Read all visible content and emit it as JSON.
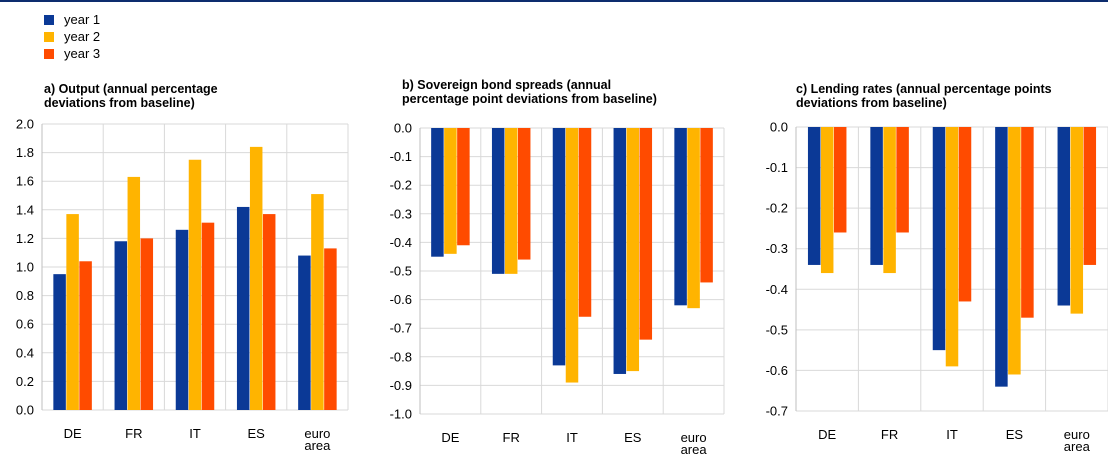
{
  "legend": [
    {
      "label": "year 1",
      "color": "#0b3996"
    },
    {
      "label": "year 2",
      "color": "#ffb400"
    },
    {
      "label": "year 3",
      "color": "#ff4b00"
    }
  ],
  "chart_data": [
    {
      "type": "bar",
      "title_lines": [
        "a) Output (annual percentage",
        "deviations from baseline)"
      ],
      "categories": [
        "DE",
        "FR",
        "IT",
        "ES",
        "euro area"
      ],
      "series": [
        {
          "name": "year 1",
          "values": [
            0.95,
            1.18,
            1.26,
            1.42,
            1.08
          ]
        },
        {
          "name": "year 2",
          "values": [
            1.37,
            1.63,
            1.75,
            1.84,
            1.51
          ]
        },
        {
          "name": "year 3",
          "values": [
            1.04,
            1.2,
            1.31,
            1.37,
            1.13
          ]
        }
      ],
      "ylim": [
        0,
        2.0
      ],
      "yticks": [
        "2.0",
        "1.8",
        "1.6",
        "1.4",
        "1.2",
        "1.0",
        "0.8",
        "0.6",
        "0.4",
        "0.2",
        "0.0"
      ],
      "legend_position": "top-left"
    },
    {
      "type": "bar",
      "title_lines": [
        "b) Sovereign bond spreads (annual",
        "percentage point deviations from baseline)"
      ],
      "categories": [
        "DE",
        "FR",
        "IT",
        "ES",
        "euro area"
      ],
      "series": [
        {
          "name": "year 1",
          "values": [
            -0.45,
            -0.51,
            -0.83,
            -0.86,
            -0.62
          ]
        },
        {
          "name": "year 2",
          "values": [
            -0.44,
            -0.51,
            -0.89,
            -0.85,
            -0.63
          ]
        },
        {
          "name": "year 3",
          "values": [
            -0.41,
            -0.46,
            -0.66,
            -0.74,
            -0.54
          ]
        }
      ],
      "ylim": [
        -1.0,
        0
      ],
      "yticks": [
        "0.0",
        "-0.1",
        "-0.2",
        "-0.3",
        "-0.4",
        "-0.5",
        "-0.6",
        "-0.7",
        "-0.8",
        "-0.9",
        "-1.0"
      ]
    },
    {
      "type": "bar",
      "title_lines": [
        "c) Lending rates (annual percentage points",
        "deviations from baseline)"
      ],
      "categories": [
        "DE",
        "FR",
        "IT",
        "ES",
        "euro area"
      ],
      "series": [
        {
          "name": "year 1",
          "values": [
            -0.34,
            -0.34,
            -0.55,
            -0.64,
            -0.44
          ]
        },
        {
          "name": "year 2",
          "values": [
            -0.36,
            -0.36,
            -0.59,
            -0.61,
            -0.46
          ]
        },
        {
          "name": "year 3",
          "values": [
            -0.26,
            -0.26,
            -0.43,
            -0.47,
            -0.34
          ]
        }
      ],
      "ylim": [
        -0.7,
        0
      ],
      "yticks": [
        "0.0",
        "-0.1",
        "-0.2",
        "-0.3",
        "-0.4",
        "-0.5",
        "-0.6",
        "-0.7"
      ]
    }
  ]
}
